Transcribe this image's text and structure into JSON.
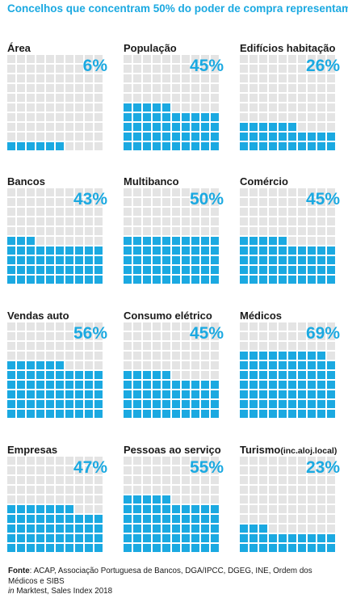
{
  "title": "Concelhos que concentram 50% do poder de compra representam...",
  "colors": {
    "fill": "#1ba9e1",
    "empty": "#e4e4e4",
    "accent": "#1ba9e1"
  },
  "chart_data": {
    "type": "waffle",
    "panels": [
      {
        "label": "Área",
        "value": 6,
        "value_label": "6%"
      },
      {
        "label": "População",
        "value": 45,
        "value_label": "45%"
      },
      {
        "label": "Edifícios habitação",
        "value": 26,
        "value_label": "26%"
      },
      {
        "label": "Bancos",
        "value": 43,
        "value_label": "43%"
      },
      {
        "label": "Multibanco",
        "value": 50,
        "value_label": "50%"
      },
      {
        "label": "Comércio",
        "value": 45,
        "value_label": "45%"
      },
      {
        "label": "Vendas auto",
        "value": 56,
        "value_label": "56%"
      },
      {
        "label": "Consumo elétrico",
        "value": 45,
        "value_label": "45%"
      },
      {
        "label": "Médicos",
        "value": 69,
        "value_label": "69%"
      },
      {
        "label": "Empresas",
        "value": 47,
        "value_label": "47%"
      },
      {
        "label": "Pessoas ao serviço",
        "value": 55,
        "value_label": "55%"
      },
      {
        "label": "Turismo",
        "label_suffix": "(inc.aloj.local)",
        "value": 23,
        "value_label": "23%"
      }
    ]
  },
  "source": {
    "prefix": "Fonte",
    "text": ":  ACAP, Associação Portuguesa de Bancos, DGA/IPCC,  DGEG, INE, Ordem dos Médicos e SIBS",
    "in_word": "in",
    "in_text": " Marktest, Sales Index 2018"
  }
}
